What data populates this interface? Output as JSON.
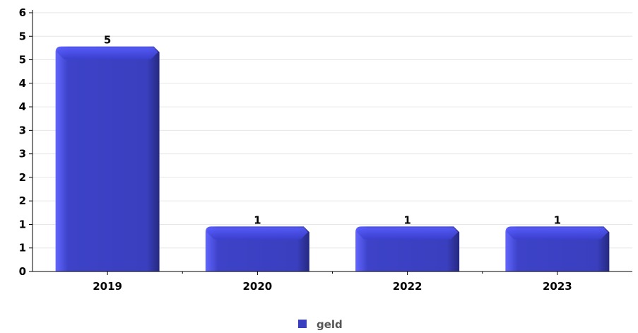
{
  "chart_data": {
    "type": "bar",
    "categories": [
      "2019",
      "2020",
      "2022",
      "2023"
    ],
    "series": [
      {
        "name": "geld",
        "values": [
          5,
          1,
          1,
          1
        ]
      }
    ],
    "value_labels": [
      "5",
      "1",
      "1",
      "1"
    ],
    "y_tick_labels": [
      "0",
      "1",
      "1",
      "2",
      "2",
      "3",
      "3",
      "4",
      "4",
      "5",
      "5",
      "6"
    ],
    "ylim": [
      0,
      5.75
    ],
    "grid": true,
    "legend": "bottom-center",
    "colors": {
      "bar": "#3a3fbf",
      "bar_light": "#5a5fff",
      "bar_dark": "#2a2e8f",
      "grid": "#e6e6e6",
      "axis": "#000000"
    }
  }
}
